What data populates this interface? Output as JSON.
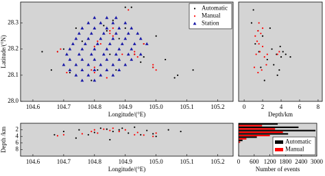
{
  "chart_data": [
    {
      "type": "scatter",
      "xlabel": "Longitude/(°E)",
      "ylabel": "Latitude/(°N)",
      "legend": "upper right",
      "xlim": [
        104.56,
        105.25
      ],
      "ylim": [
        28.0,
        28.38
      ],
      "xticks": [
        104.6,
        104.7,
        104.8,
        104.9,
        {
          "value": 105,
          "label": "105.0"
        },
        105.1,
        105.2
      ],
      "yticks": [
        {
          "value": 28,
          "label": "28.0"
        },
        28.1,
        28.2,
        28.3
      ],
      "series": [
        {
          "name": "Automatic",
          "color": "#000000",
          "marker": "dot",
          "x": [
            104.63,
            104.66,
            104.7,
            104.74,
            104.78,
            104.81,
            104.84,
            104.86,
            104.88,
            104.9,
            104.93,
            104.96,
            104.99,
            105.03,
            105.07,
            105.12,
            104.92,
            104.87,
            104.79,
            104.72,
            104.96,
            104.85,
            105.0,
            104.68,
            104.83,
            104.9,
            104.95,
            104.81,
            104.76,
            105.06
          ],
          "values": [
            28.19,
            28.12,
            28.2,
            28.28,
            28.14,
            28.22,
            28.27,
            28.31,
            28.24,
            28.36,
            28.18,
            28.17,
            28.13,
            28.16,
            28.1,
            28.12,
            28.36,
            28.12,
            28.08,
            28.11,
            28.22,
            28.18,
            28.25,
            28.19,
            28.29,
            28.28,
            28.15,
            28.12,
            28.23,
            28.09
          ]
        },
        {
          "name": "Manual",
          "color": "#ff0000",
          "marker": "dot",
          "x": [
            104.68,
            104.69,
            104.8,
            104.81,
            104.81,
            104.82,
            104.85,
            104.85,
            104.86,
            104.86,
            104.79,
            104.8,
            104.8,
            104.93,
            104.93,
            104.94,
            104.99,
            104.99,
            105.0,
            104.89,
            104.71,
            104.84,
            104.96,
            104.91,
            104.76
          ],
          "values": [
            28.19,
            28.2,
            28.21,
            28.22,
            28.23,
            28.22,
            28.26,
            28.27,
            28.28,
            28.25,
            28.12,
            28.13,
            28.11,
            28.18,
            28.19,
            28.17,
            28.13,
            28.14,
            28.12,
            28.18,
            28.11,
            28.09,
            28.22,
            28.35,
            28.16
          ]
        },
        {
          "name": "Station",
          "color": "#1a1aa6",
          "marker": "triangle",
          "x": [
            104.8,
            104.84,
            104.87,
            104.78,
            104.82,
            104.86,
            104.9,
            104.76,
            104.8,
            104.84,
            104.88,
            104.92,
            104.75,
            104.79,
            104.83,
            104.87,
            104.91,
            104.94,
            104.74,
            104.78,
            104.82,
            104.86,
            104.9,
            104.95,
            104.73,
            104.77,
            104.81,
            104.85,
            104.89,
            104.93,
            104.97,
            104.72,
            104.76,
            104.8,
            104.84,
            104.88,
            104.92,
            104.71,
            104.75,
            104.79,
            104.83,
            104.87,
            104.91,
            104.95,
            104.72,
            104.76,
            104.8,
            104.84,
            104.88,
            104.92,
            104.7,
            104.74,
            104.78,
            104.82,
            104.86,
            104.9,
            104.72,
            104.76,
            104.8,
            104.84,
            104.88,
            104.74,
            104.78,
            104.82,
            104.86,
            104.76,
            104.8
          ],
          "values": [
            28.32,
            28.32,
            28.32,
            28.3,
            28.3,
            28.3,
            28.3,
            28.28,
            28.28,
            28.28,
            28.28,
            28.28,
            28.26,
            28.26,
            28.26,
            28.26,
            28.26,
            28.26,
            28.24,
            28.24,
            28.24,
            28.24,
            28.24,
            28.24,
            28.22,
            28.22,
            28.22,
            28.22,
            28.22,
            28.22,
            28.22,
            28.2,
            28.2,
            28.2,
            28.2,
            28.2,
            28.2,
            28.18,
            28.18,
            28.18,
            28.18,
            28.18,
            28.18,
            28.18,
            28.16,
            28.16,
            28.16,
            28.16,
            28.16,
            28.16,
            28.14,
            28.14,
            28.14,
            28.14,
            28.14,
            28.14,
            28.12,
            28.12,
            28.12,
            28.12,
            28.12,
            28.1,
            28.1,
            28.1,
            28.1,
            28.08,
            28.08
          ]
        }
      ]
    },
    {
      "type": "scatter",
      "xlabel": "Depth/km",
      "xlim": [
        -0.6,
        8.45
      ],
      "ylim": [
        28.0,
        28.38
      ],
      "xticks": [
        0,
        2,
        4,
        6,
        8
      ],
      "series": [
        {
          "name": "Automatic",
          "color": "#000000",
          "marker": "dot",
          "x": [
            1.5,
            2.0,
            3.5,
            4.0,
            3.8,
            1.2,
            2.5,
            3.0,
            4.2,
            1.8,
            0.8,
            2.2,
            3.6,
            4.5,
            1.0,
            2.8,
            3.9,
            5.0,
            1.6,
            3.2
          ],
          "values": [
            28.27,
            28.25,
            28.18,
            28.17,
            28.12,
            28.22,
            28.16,
            28.2,
            28.19,
            28.13,
            28.3,
            28.08,
            28.1,
            28.18,
            28.35,
            28.28,
            28.21,
            28.17,
            28.19,
            28.14
          ]
        },
        {
          "name": "Manual",
          "color": "#ff0000",
          "marker": "dot",
          "x": [
            1.2,
            1.5,
            1.8,
            1.4,
            1.6,
            2.0,
            1.7,
            1.3,
            2.2,
            2.5,
            3.6,
            3.8,
            1.1,
            1.9,
            1.5,
            2.4,
            1.6,
            2.0
          ],
          "values": [
            28.25,
            28.27,
            28.26,
            28.23,
            28.22,
            28.28,
            28.19,
            28.18,
            28.17,
            28.18,
            28.18,
            28.19,
            28.13,
            28.12,
            28.11,
            28.14,
            28.3,
            28.21
          ]
        }
      ]
    },
    {
      "type": "scatter",
      "xlabel": "Longitude/(°E)",
      "ylabel": "Depth /km",
      "invert_y": true,
      "xlim": [
        104.56,
        105.25
      ],
      "ylim": [
        0,
        10
      ],
      "xticks": [
        104.6,
        104.7,
        104.8,
        104.9,
        {
          "value": 105,
          "label": "105.0"
        },
        105.1,
        105.2
      ],
      "yticks": [
        2,
        4,
        6,
        8
      ],
      "series": [
        {
          "name": "Automatic",
          "color": "#000000",
          "marker": "dot",
          "x": [
            104.67,
            104.7,
            104.75,
            104.78,
            104.82,
            104.84,
            104.86,
            104.88,
            104.91,
            104.93,
            104.95,
            104.97,
            105.0,
            105.04,
            104.8,
            104.89,
            104.74,
            104.99,
            105.08,
            104.85
          ],
          "values": [
            3.5,
            2.5,
            2.0,
            3.5,
            1.5,
            1.8,
            2.5,
            2.0,
            3.0,
            1.2,
            3.5,
            2.2,
            4.0,
            2.0,
            2.8,
            1.5,
            4.5,
            3.2,
            2.5,
            5.0
          ]
        },
        {
          "name": "Manual",
          "color": "#ff0000",
          "marker": "dot",
          "x": [
            104.68,
            104.7,
            104.8,
            104.81,
            104.83,
            104.85,
            104.86,
            104.88,
            104.93,
            104.94,
            104.99,
            105.0,
            104.79,
            104.9,
            104.76,
            104.96
          ],
          "values": [
            3.8,
            3.5,
            2.0,
            3.0,
            1.8,
            2.2,
            1.5,
            2.5,
            3.5,
            2.8,
            4.0,
            3.0,
            2.5,
            2.0,
            3.2,
            3.6
          ]
        }
      ]
    },
    {
      "type": "histogram",
      "xlabel": "Number of events",
      "legend": "lower right",
      "invert_y": true,
      "xlim": [
        0,
        3000
      ],
      "ylim": [
        0,
        10
      ],
      "xticks": [
        0,
        600,
        1200,
        1800,
        2400,
        3000
      ],
      "bins": [
        0,
        1,
        2,
        3,
        4,
        5,
        6
      ],
      "series": [
        {
          "name": "Automatic",
          "color": "#000000",
          "values": [
            1500,
            2300,
            2950,
            1900,
            700,
            150
          ]
        },
        {
          "name": "Manual",
          "color": "#ff0000",
          "values": [
            900,
            1400,
            1700,
            1200,
            300,
            60
          ]
        }
      ]
    }
  ]
}
